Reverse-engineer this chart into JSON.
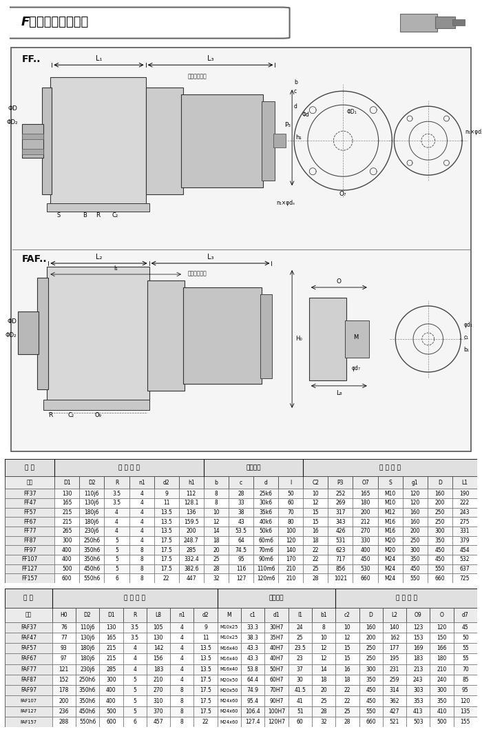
{
  "title": "F系列外形安装尺寸",
  "bg_color": "#ffffff",
  "ff_table": {
    "main_headers": [
      "型 号",
      "安 装 尺 寸",
      "轴伸尺寸",
      "外 型 尺 寸"
    ],
    "main_spans": [
      1,
      6,
      4,
      7
    ],
    "sub_headers": [
      "型号",
      "D1",
      "D2",
      "R",
      "n1",
      "d2",
      "h1",
      "b",
      "c",
      "d",
      "l",
      "C2",
      "P3",
      "O7",
      "S",
      "g1",
      "D",
      "L1"
    ],
    "rows": [
      [
        "FF37",
        "130",
        "110j6",
        "3.5",
        "4",
        "9",
        "112",
        "8",
        "28",
        "25k6",
        "50",
        "10",
        "252",
        "165",
        "M10",
        "120",
        "160",
        "190"
      ],
      [
        "FF47",
        "165",
        "130j6",
        "3.5",
        "4",
        "11",
        "128.1",
        "8",
        "33",
        "30k6",
        "60",
        "12",
        "269",
        "180",
        "M10",
        "120",
        "200",
        "222"
      ],
      [
        "FF57",
        "215",
        "180j6",
        "4",
        "4",
        "13.5",
        "136",
        "10",
        "38",
        "35k6",
        "70",
        "15",
        "317",
        "200",
        "M12",
        "160",
        "250",
        "243"
      ],
      [
        "FF67",
        "215",
        "180j6",
        "4",
        "4",
        "13.5",
        "159.5",
        "12",
        "43",
        "40k6",
        "80",
        "15",
        "343",
        "212",
        "M16",
        "160",
        "250",
        "275"
      ],
      [
        "FF77",
        "265",
        "230j6",
        "4",
        "4",
        "13.5",
        "200",
        "14",
        "53.5",
        "50k6",
        "100",
        "16",
        "426",
        "270",
        "M16",
        "200",
        "300",
        "331"
      ],
      [
        "FF87",
        "300",
        "250h6",
        "5",
        "4",
        "17.5",
        "248.7",
        "18",
        "64",
        "60m6",
        "120",
        "18",
        "531",
        "330",
        "M20",
        "250",
        "350",
        "379"
      ],
      [
        "FF97",
        "400",
        "350h6",
        "5",
        "8",
        "17.5",
        "285",
        "20",
        "74.5",
        "70m6",
        "140",
        "22",
        "623",
        "400",
        "M20",
        "300",
        "450",
        "454"
      ],
      [
        "FF107",
        "400",
        "350h6",
        "5",
        "8",
        "17.5",
        "332.4",
        "25",
        "95",
        "90m6",
        "170",
        "22",
        "717",
        "450",
        "M24",
        "350",
        "450",
        "532"
      ],
      [
        "FF127",
        "500",
        "450h6",
        "5",
        "8",
        "17.5",
        "382.6",
        "28",
        "116",
        "110m6",
        "210",
        "25",
        "856",
        "530",
        "M24",
        "450",
        "550",
        "637"
      ],
      [
        "FF157",
        "600",
        "550h6",
        "6",
        "8",
        "22",
        "447",
        "32",
        "127",
        "120m6",
        "210",
        "28",
        "1021",
        "660",
        "M24",
        "550",
        "660",
        "725"
      ]
    ]
  },
  "faf_table": {
    "main_headers": [
      "型 号",
      "安 装 尺 寸",
      "轴伸尺寸",
      "外 型 尺 寸"
    ],
    "main_spans": [
      1,
      7,
      5,
      6
    ],
    "sub_headers": [
      "型号",
      "H0",
      "D2",
      "D1",
      "R",
      "L8",
      "n1",
      "d2",
      "M",
      "c1",
      "d1",
      "l1",
      "b1",
      "c2",
      "D",
      "L2",
      "O9",
      "O",
      "d7"
    ],
    "rows": [
      [
        "FAF37",
        "76",
        "110j6",
        "130",
        "3.5",
        "105",
        "4",
        "9",
        "M10x25",
        "33.3",
        "30H7",
        "24",
        "8",
        "10",
        "160",
        "140",
        "123",
        "120",
        "45"
      ],
      [
        "FAF47",
        "77",
        "130j6",
        "165",
        "3.5",
        "130",
        "4",
        "11",
        "M10x25",
        "38.3",
        "35H7",
        "25",
        "10",
        "12",
        "200",
        "162",
        "153",
        "150",
        "50"
      ],
      [
        "FAF57",
        "93",
        "180j6",
        "215",
        "4",
        "142",
        "4",
        "13.5",
        "M16x40",
        "43.3",
        "40H7",
        "23.5",
        "12",
        "15",
        "250",
        "177",
        "169",
        "166",
        "55"
      ],
      [
        "FAF67",
        "97",
        "180j6",
        "215",
        "4",
        "156",
        "4",
        "13.5",
        "M16x40",
        "43.3",
        "40H7",
        "23",
        "12",
        "15",
        "250",
        "195",
        "183",
        "180",
        "55"
      ],
      [
        "FAF77",
        "121",
        "230j6",
        "285",
        "4",
        "183",
        "4",
        "13.5",
        "M16x40",
        "53.8",
        "50H7",
        "37",
        "14",
        "16",
        "300",
        "231",
        "213",
        "210",
        "70"
      ],
      [
        "FAF87",
        "152",
        "250h6",
        "300",
        "5",
        "210",
        "4",
        "17.5",
        "M20x50",
        "64.4",
        "60H7",
        "30",
        "18",
        "18",
        "350",
        "259",
        "243",
        "240",
        "85"
      ],
      [
        "FAF97",
        "178",
        "350h6",
        "400",
        "5",
        "270",
        "8",
        "17.5",
        "M20x50",
        "74.9",
        "70H7",
        "41.5",
        "20",
        "22",
        "450",
        "314",
        "303",
        "300",
        "95"
      ],
      [
        "FAF107",
        "200",
        "350h6",
        "400",
        "5",
        "310",
        "8",
        "17.5",
        "M24x60",
        "95.4",
        "90H7",
        "41",
        "25",
        "22",
        "450",
        "362",
        "353",
        "350",
        "120"
      ],
      [
        "FAF127",
        "236",
        "450h6",
        "500",
        "5",
        "370",
        "8",
        "17.5",
        "M24x60",
        "106.4",
        "100H7",
        "51",
        "28",
        "25",
        "550",
        "427",
        "413",
        "410",
        "135"
      ],
      [
        "FAF157",
        "288",
        "550h6",
        "600",
        "6",
        "457",
        "8",
        "22",
        "M24x60",
        "127.4",
        "120H7",
        "60",
        "32",
        "28",
        "660",
        "521",
        "503",
        "500",
        "155"
      ]
    ]
  }
}
